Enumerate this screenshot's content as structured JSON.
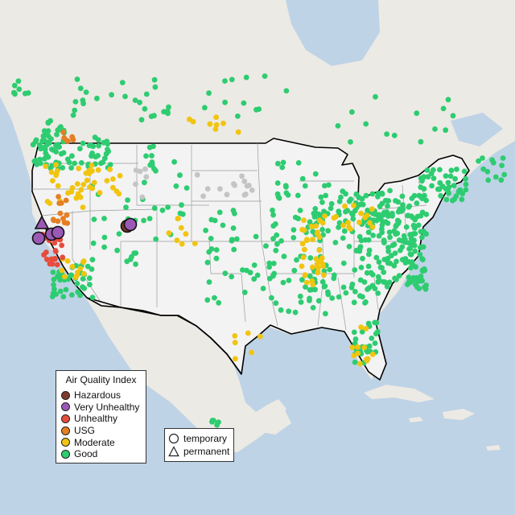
{
  "legend_aqi": {
    "title": "Air Quality Index",
    "items": [
      {
        "name": "hazardous",
        "label": "Hazardous",
        "color": "#7e3a2c"
      },
      {
        "name": "very-unhealthy",
        "label": "Very Unhealthy",
        "color": "#9b59b6"
      },
      {
        "name": "unhealthy",
        "label": "Unhealthy",
        "color": "#e74c3c"
      },
      {
        "name": "usg",
        "label": "USG",
        "color": "#e67e22"
      },
      {
        "name": "moderate",
        "label": "Moderate",
        "color": "#f1c40f"
      },
      {
        "name": "good",
        "label": "Good",
        "color": "#2ecc71"
      }
    ]
  },
  "legend_type": {
    "items": [
      {
        "name": "temporary",
        "label": "temporary",
        "shape": "circle"
      },
      {
        "name": "permanent",
        "label": "permanent",
        "shape": "triangle"
      }
    ]
  },
  "colors": {
    "ocean": "#bfd3e6",
    "land": "#eceae4",
    "usa": "#f3f3f3",
    "border": "#000000",
    "state_line": "#9a9a9a",
    "no_data": "#c4c4c4"
  }
}
